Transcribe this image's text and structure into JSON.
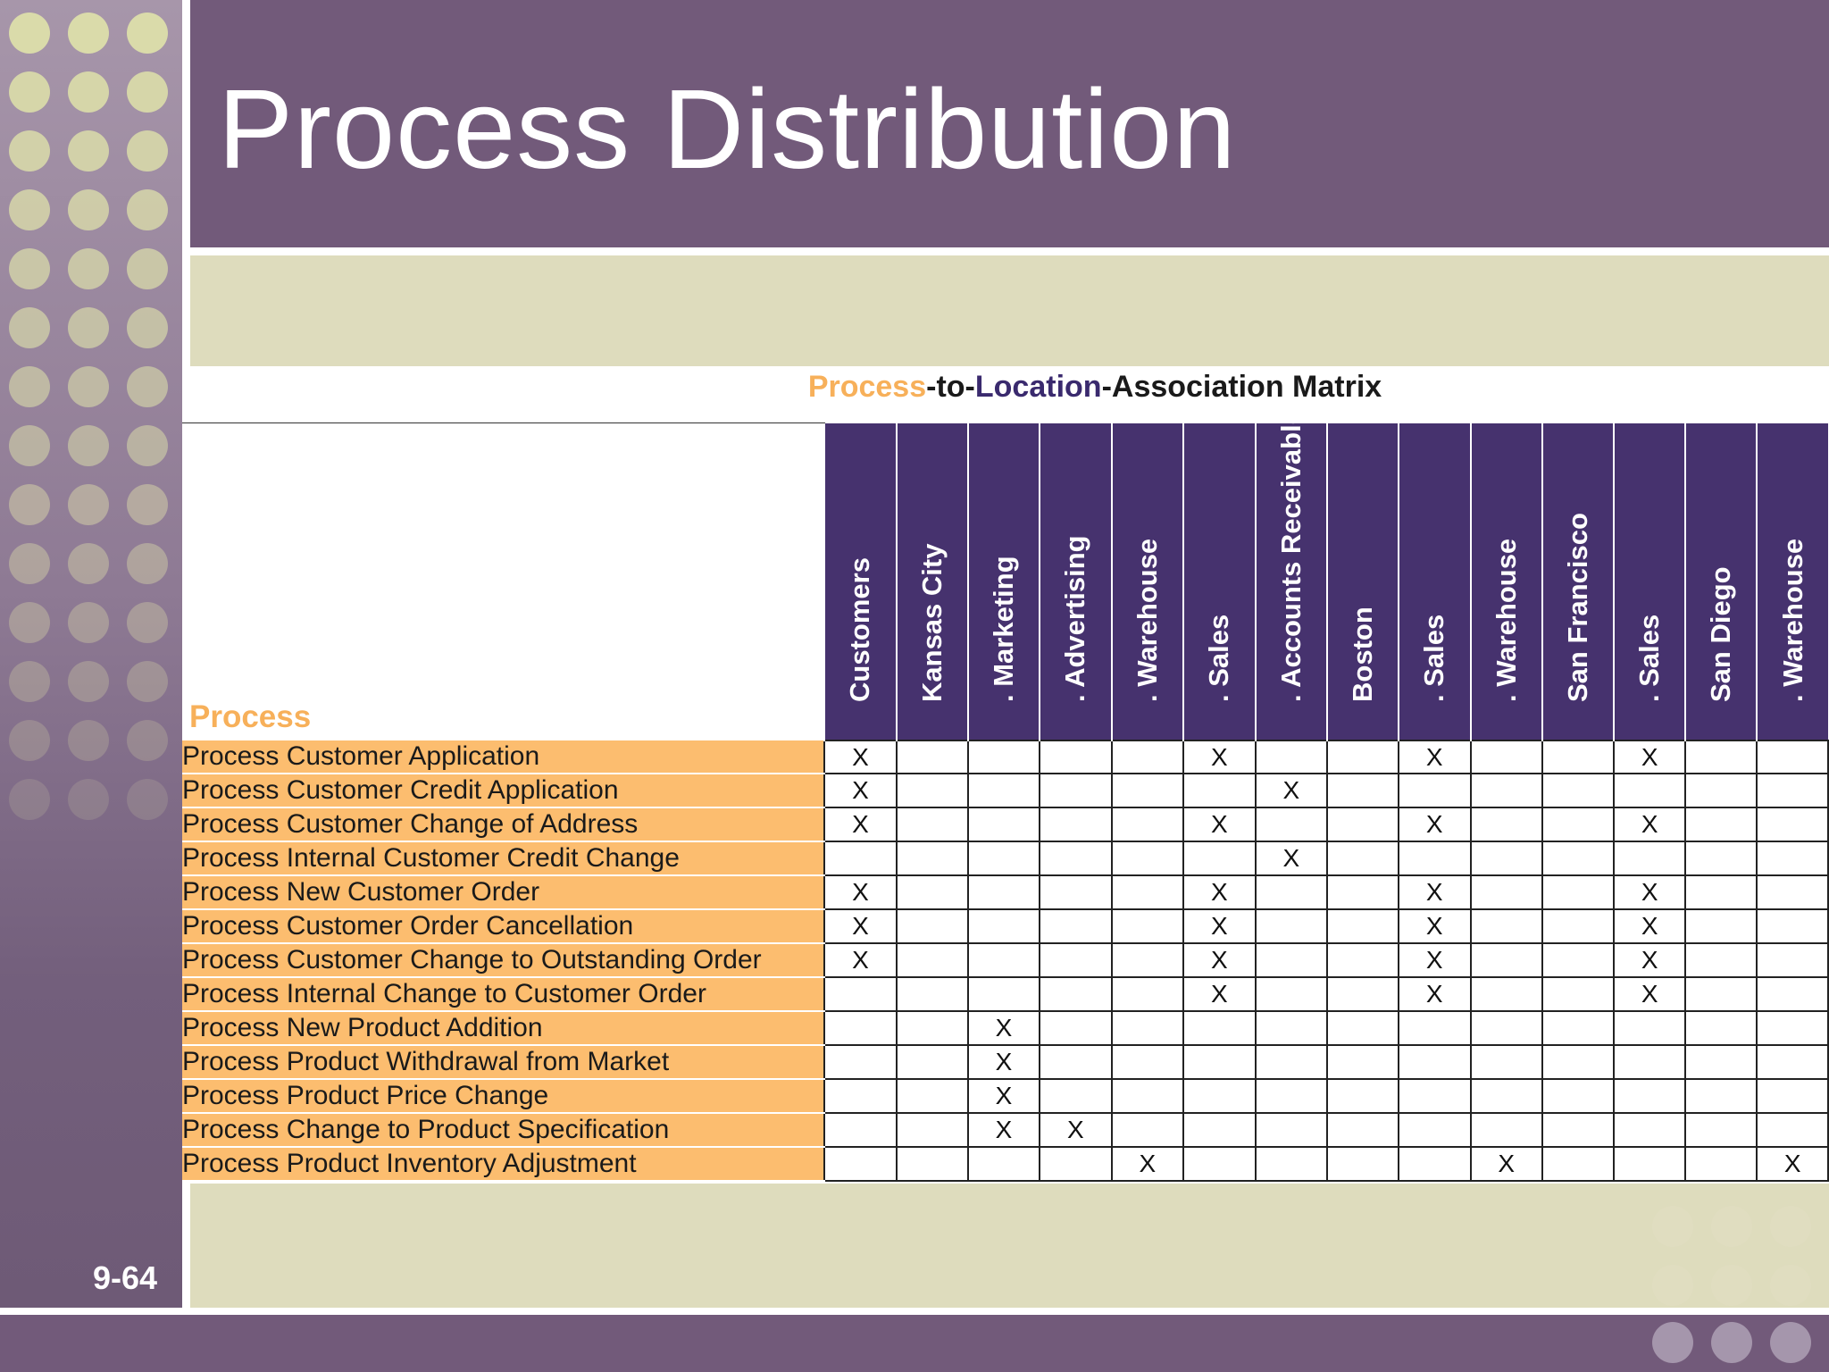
{
  "slide": {
    "title": "Process Distribution",
    "number": "9-64"
  },
  "colors": {
    "title_band": "#725a7a",
    "content_bg": "#dedcbd",
    "header_purple": "#46326e",
    "row_orange": "#fcbd6f",
    "accent_orange": "#f7b05a"
  },
  "matrix": {
    "title_parts": [
      {
        "text": "Process",
        "style": "orange"
      },
      {
        "text": "-to-",
        "style": "plain"
      },
      {
        "text": "Location",
        "style": "navy"
      },
      {
        "text": "-Association Matrix",
        "style": "plain"
      }
    ],
    "row_header": "Process",
    "mark": "X",
    "columns": [
      "Customers",
      "Kansas City",
      ". Marketing",
      ". Advertising",
      ". Warehouse",
      ". Sales",
      ". Accounts Receivable",
      "Boston",
      ". Sales",
      ". Warehouse",
      "San Francisco",
      ". Sales",
      "San Diego",
      ". Warehouse"
    ],
    "rows": [
      {
        "label": "Process Customer Application",
        "marks": [
          0,
          5,
          8,
          11
        ]
      },
      {
        "label": "Process Customer Credit Application",
        "marks": [
          0,
          6
        ]
      },
      {
        "label": "Process Customer Change of Address",
        "marks": [
          0,
          5,
          8,
          11
        ]
      },
      {
        "label": "Process Internal Customer Credit Change",
        "marks": [
          6
        ]
      },
      {
        "label": "Process New Customer Order",
        "marks": [
          0,
          5,
          8,
          11
        ]
      },
      {
        "label": "Process Customer Order Cancellation",
        "marks": [
          0,
          5,
          8,
          11
        ]
      },
      {
        "label": "Process Customer Change to Outstanding Order",
        "marks": [
          0,
          5,
          8,
          11
        ]
      },
      {
        "label": "Process Internal Change to Customer Order",
        "marks": [
          5,
          8,
          11
        ]
      },
      {
        "label": "Process New Product Addition",
        "marks": [
          2
        ]
      },
      {
        "label": "Process Product Withdrawal from Market",
        "marks": [
          2
        ]
      },
      {
        "label": "Process Product Price Change",
        "marks": [
          2
        ]
      },
      {
        "label": "Process Change to Product Specification",
        "marks": [
          2,
          3
        ]
      },
      {
        "label": "Process Product Inventory Adjustment",
        "marks": [
          4,
          9,
          13
        ]
      }
    ]
  }
}
